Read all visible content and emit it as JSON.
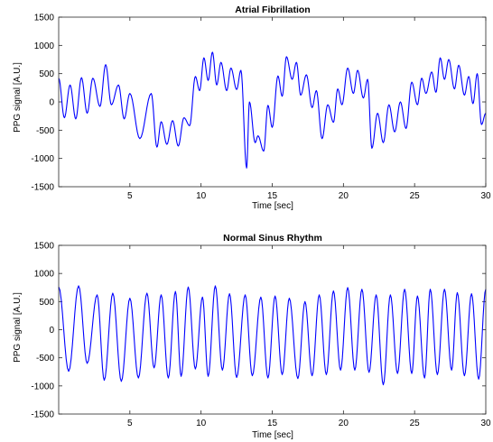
{
  "chart_data": [
    {
      "type": "line",
      "title": "Atrial Fibrillation",
      "xlabel": "Time [sec]",
      "ylabel": "PPG signal [A.U.]",
      "xlim": [
        0,
        30
      ],
      "ylim": [
        -1500,
        1500
      ],
      "xticks": [
        5,
        10,
        15,
        20,
        25,
        30
      ],
      "yticks": [
        -1500,
        -1000,
        -500,
        0,
        500,
        1000,
        1500
      ],
      "grid": false,
      "color": "#0000ff",
      "peaks": [
        [
          0.0,
          420
        ],
        [
          0.8,
          300
        ],
        [
          1.6,
          430
        ],
        [
          2.4,
          420
        ],
        [
          3.3,
          660
        ],
        [
          4.2,
          300
        ],
        [
          5.0,
          150
        ],
        [
          6.5,
          150
        ],
        [
          7.2,
          -350
        ],
        [
          8.0,
          -330
        ],
        [
          8.8,
          -280
        ],
        [
          9.6,
          450
        ],
        [
          10.2,
          780
        ],
        [
          10.8,
          880
        ],
        [
          11.4,
          700
        ],
        [
          12.1,
          600
        ],
        [
          12.8,
          560
        ],
        [
          13.4,
          0
        ],
        [
          14.0,
          -600
        ],
        [
          14.7,
          -60
        ],
        [
          15.4,
          460
        ],
        [
          16.0,
          800
        ],
        [
          16.7,
          700
        ],
        [
          17.4,
          480
        ],
        [
          18.1,
          200
        ],
        [
          18.9,
          -50
        ],
        [
          19.6,
          230
        ],
        [
          20.3,
          600
        ],
        [
          21.0,
          560
        ],
        [
          21.7,
          400
        ],
        [
          22.4,
          -200
        ],
        [
          23.2,
          -50
        ],
        [
          24.0,
          0
        ],
        [
          24.8,
          350
        ],
        [
          25.5,
          420
        ],
        [
          26.2,
          530
        ],
        [
          26.8,
          780
        ],
        [
          27.4,
          750
        ],
        [
          28.1,
          650
        ],
        [
          28.8,
          450
        ],
        [
          29.4,
          500
        ],
        [
          30.0,
          -200
        ]
      ],
      "troughs": [
        [
          0.4,
          -280
        ],
        [
          1.2,
          -300
        ],
        [
          2.0,
          -200
        ],
        [
          2.9,
          -80
        ],
        [
          3.7,
          -50
        ],
        [
          4.6,
          -300
        ],
        [
          5.7,
          -650
        ],
        [
          6.9,
          -800
        ],
        [
          7.6,
          -750
        ],
        [
          8.4,
          -780
        ],
        [
          9.2,
          -420
        ],
        [
          9.9,
          200
        ],
        [
          10.5,
          380
        ],
        [
          11.1,
          300
        ],
        [
          11.8,
          200
        ],
        [
          12.5,
          220
        ],
        [
          13.2,
          -1170
        ],
        [
          13.8,
          -720
        ],
        [
          14.4,
          -870
        ],
        [
          15.0,
          -450
        ],
        [
          15.7,
          100
        ],
        [
          16.4,
          400
        ],
        [
          17.0,
          120
        ],
        [
          17.8,
          -100
        ],
        [
          18.5,
          -650
        ],
        [
          19.3,
          -360
        ],
        [
          19.9,
          -50
        ],
        [
          20.7,
          150
        ],
        [
          21.4,
          70
        ],
        [
          22.0,
          -820
        ],
        [
          22.8,
          -720
        ],
        [
          23.6,
          -530
        ],
        [
          24.4,
          -470
        ],
        [
          25.2,
          -50
        ],
        [
          25.8,
          150
        ],
        [
          26.5,
          170
        ],
        [
          27.1,
          400
        ],
        [
          27.8,
          230
        ],
        [
          28.5,
          120
        ],
        [
          29.1,
          -30
        ],
        [
          29.7,
          -400
        ]
      ]
    },
    {
      "type": "line",
      "title": "Normal Sinus Rhythm",
      "xlabel": "Time [sec]",
      "ylabel": "PPG signal [A.U.]",
      "xlim": [
        0,
        30
      ],
      "ylim": [
        -1500,
        1500
      ],
      "xticks": [
        5,
        10,
        15,
        20,
        25,
        30
      ],
      "yticks": [
        -1500,
        -1000,
        -500,
        0,
        500,
        1000,
        1500
      ],
      "grid": false,
      "color": "#0000ff",
      "peaks": [
        [
          0.0,
          760
        ],
        [
          1.4,
          780
        ],
        [
          2.7,
          620
        ],
        [
          3.8,
          650
        ],
        [
          5.0,
          560
        ],
        [
          6.2,
          650
        ],
        [
          7.2,
          620
        ],
        [
          8.2,
          680
        ],
        [
          9.1,
          760
        ],
        [
          10.1,
          580
        ],
        [
          11.0,
          780
        ],
        [
          12.0,
          640
        ],
        [
          13.1,
          620
        ],
        [
          14.2,
          580
        ],
        [
          15.2,
          600
        ],
        [
          16.2,
          560
        ],
        [
          17.3,
          500
        ],
        [
          18.3,
          620
        ],
        [
          19.3,
          690
        ],
        [
          20.3,
          750
        ],
        [
          21.3,
          720
        ],
        [
          22.3,
          620
        ],
        [
          23.3,
          620
        ],
        [
          24.3,
          720
        ],
        [
          25.2,
          600
        ],
        [
          26.1,
          720
        ],
        [
          27.1,
          720
        ],
        [
          28.0,
          660
        ],
        [
          29.0,
          640
        ],
        [
          30.0,
          720
        ]
      ],
      "troughs": [
        [
          0.7,
          -740
        ],
        [
          2.0,
          -600
        ],
        [
          3.2,
          -900
        ],
        [
          4.4,
          -920
        ],
        [
          5.6,
          -860
        ],
        [
          6.7,
          -680
        ],
        [
          7.7,
          -860
        ],
        [
          8.6,
          -830
        ],
        [
          9.6,
          -700
        ],
        [
          10.5,
          -830
        ],
        [
          11.5,
          -720
        ],
        [
          12.5,
          -850
        ],
        [
          13.6,
          -820
        ],
        [
          14.7,
          -860
        ],
        [
          15.7,
          -800
        ],
        [
          16.8,
          -870
        ],
        [
          17.8,
          -820
        ],
        [
          18.8,
          -800
        ],
        [
          19.8,
          -720
        ],
        [
          20.8,
          -720
        ],
        [
          21.8,
          -760
        ],
        [
          22.8,
          -980
        ],
        [
          23.8,
          -780
        ],
        [
          24.8,
          -780
        ],
        [
          25.7,
          -860
        ],
        [
          26.6,
          -800
        ],
        [
          27.6,
          -720
        ],
        [
          28.5,
          -820
        ],
        [
          29.5,
          -880
        ]
      ]
    }
  ]
}
